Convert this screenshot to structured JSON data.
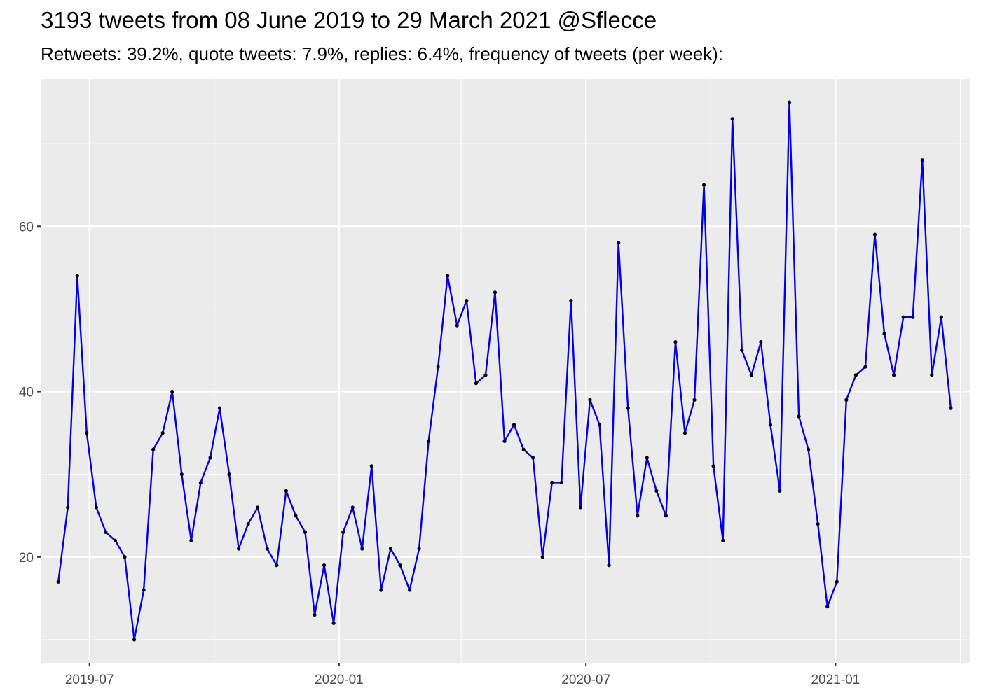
{
  "title": "3193 tweets from 08 June 2019 to 29 March 2021 @Sflecce",
  "subtitle": "Retweets: 39.2%, quote tweets: 7.9%, replies: 6.4%, frequency of tweets (per week):",
  "chart_data": {
    "type": "line",
    "title": "3193 tweets from 08 June 2019 to 29 March 2021 @Sflecce",
    "subtitle": "Retweets: 39.2%, quote tweets: 7.9%, replies: 6.4%, frequency of tweets (per week):",
    "xlabel": "",
    "ylabel": "",
    "x_type": "date",
    "x_ticks": [
      "2019-07-01",
      "2020-01-01",
      "2020-07-01",
      "2021-01-01"
    ],
    "x_tick_labels": [
      "2019-07",
      "2020-01",
      "2020-07",
      "2021-01"
    ],
    "y_ticks": [
      20,
      40,
      60
    ],
    "y_tick_labels": [
      "20",
      "40",
      "60"
    ],
    "ylim": [
      7.2,
      77.8
    ],
    "xlim": [
      "2019-05-26",
      "2021-04-10"
    ],
    "grid": true,
    "line_color": "#0000ee",
    "point_color": "#000000",
    "background": "#ebebeb",
    "series": [
      {
        "x": [
          "2019-06-08",
          "2019-06-15",
          "2019-06-22",
          "2019-06-29",
          "2019-07-06",
          "2019-07-13",
          "2019-07-20",
          "2019-07-27",
          "2019-08-03",
          "2019-08-10",
          "2019-08-17",
          "2019-08-24",
          "2019-08-31",
          "2019-09-07",
          "2019-09-14",
          "2019-09-21",
          "2019-09-28",
          "2019-10-05",
          "2019-10-12",
          "2019-10-19",
          "2019-10-26",
          "2019-11-02",
          "2019-11-09",
          "2019-11-16",
          "2019-11-23",
          "2019-11-30",
          "2019-12-07",
          "2019-12-14",
          "2019-12-21",
          "2019-12-28",
          "2020-01-04",
          "2020-01-11",
          "2020-01-18",
          "2020-01-25",
          "2020-02-01",
          "2020-02-08",
          "2020-02-15",
          "2020-02-22",
          "2020-02-29",
          "2020-03-07",
          "2020-03-14",
          "2020-03-21",
          "2020-03-28",
          "2020-04-04",
          "2020-04-11",
          "2020-04-18",
          "2020-04-25",
          "2020-05-02",
          "2020-05-09",
          "2020-05-16",
          "2020-05-23",
          "2020-05-30",
          "2020-06-06",
          "2020-06-13",
          "2020-06-20",
          "2020-06-27",
          "2020-07-04",
          "2020-07-11",
          "2020-07-18",
          "2020-07-25",
          "2020-08-01",
          "2020-08-08",
          "2020-08-15",
          "2020-08-22",
          "2020-08-29",
          "2020-09-05",
          "2020-09-12",
          "2020-09-19",
          "2020-09-26",
          "2020-10-03",
          "2020-10-10",
          "2020-10-17",
          "2020-10-24",
          "2020-10-31",
          "2020-11-07",
          "2020-11-14",
          "2020-11-21",
          "2020-11-28",
          "2020-12-05",
          "2020-12-12",
          "2020-12-19",
          "2020-12-26",
          "2021-01-02",
          "2021-01-09",
          "2021-01-16",
          "2021-01-23",
          "2021-01-30",
          "2021-02-06",
          "2021-02-13",
          "2021-02-20",
          "2021-02-27",
          "2021-03-06",
          "2021-03-13",
          "2021-03-20",
          "2021-03-27"
        ],
        "y": [
          17,
          26,
          54,
          35,
          26,
          23,
          22,
          20,
          10,
          16,
          33,
          35,
          40,
          30,
          22,
          29,
          32,
          38,
          30,
          21,
          24,
          26,
          21,
          19,
          28,
          25,
          23,
          13,
          19,
          12,
          23,
          26,
          21,
          31,
          16,
          21,
          19,
          16,
          21,
          34,
          43,
          54,
          48,
          51,
          41,
          42,
          52,
          34,
          36,
          33,
          32,
          20,
          29,
          29,
          51,
          26,
          39,
          36,
          19,
          58,
          38,
          25,
          32,
          28,
          25,
          46,
          35,
          39,
          65,
          31,
          22,
          73,
          45,
          42,
          46,
          36,
          28,
          75,
          37,
          33,
          24,
          14,
          17,
          39,
          42,
          43,
          59,
          47,
          42,
          49,
          49,
          68,
          42,
          49,
          38
        ]
      }
    ]
  }
}
